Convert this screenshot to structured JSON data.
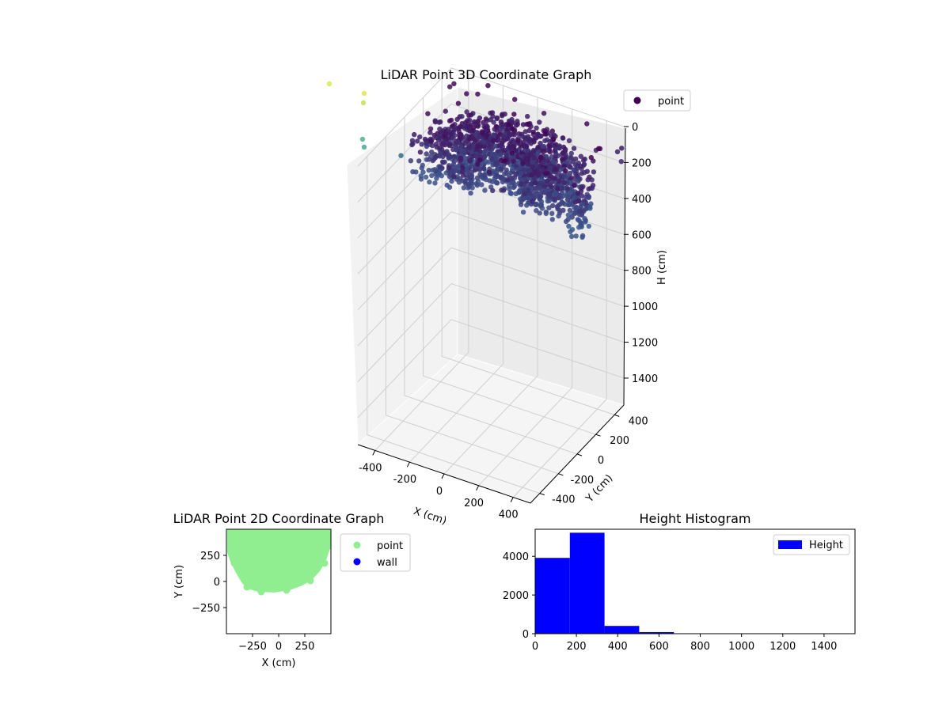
{
  "chart_data": [
    {
      "type": "scatter",
      "projection": "3d",
      "title": "LiDAR Point 3D Coordinate Graph",
      "xlabel": "X (cm)",
      "ylabel": "Y (cm)",
      "zlabel": "H (cm)",
      "xlim": [
        -500,
        500
      ],
      "ylim": [
        -500,
        500
      ],
      "zlim": [
        1550,
        0
      ],
      "x_ticks": [
        -400,
        -200,
        0,
        200,
        400
      ],
      "y_ticks": [
        -400,
        -200,
        0,
        200,
        400
      ],
      "z_ticks": [
        0,
        200,
        400,
        600,
        800,
        1000,
        1200,
        1400
      ],
      "colormap": "viridis",
      "legend": {
        "entries": [
          "point"
        ],
        "placement": "top-right"
      },
      "grid": true
    },
    {
      "type": "scatter",
      "title": "LiDAR Point 2D Coordinate Graph",
      "xlabel": "X (cm)",
      "ylabel": "Y (cm)",
      "xlim": [
        -500,
        500
      ],
      "ylim": [
        -500,
        500
      ],
      "x_ticks": [
        -250,
        0,
        250
      ],
      "y_ticks": [
        -250,
        0,
        250
      ],
      "series": [
        {
          "name": "point",
          "color": "#90ee90"
        },
        {
          "name": "wall",
          "color": "#0000ff"
        }
      ],
      "legend": {
        "entries": [
          "point",
          "wall"
        ],
        "placement": "outside-right"
      },
      "grid": false
    },
    {
      "type": "bar",
      "title": "Height Histogram",
      "xlabel": "",
      "ylabel": "",
      "xlim": [
        0,
        1550
      ],
      "ylim": [
        0,
        5400
      ],
      "x_ticks": [
        0,
        200,
        400,
        600,
        800,
        1000,
        1200,
        1400
      ],
      "y_ticks": [
        0,
        2000,
        4000
      ],
      "bin_edges": [
        0,
        168,
        336,
        504,
        672,
        840,
        1008,
        1176,
        1344,
        1512
      ],
      "series": [
        {
          "name": "Height",
          "color": "#0000ff",
          "values": [
            3920,
            5220,
            400,
            80,
            10,
            5,
            3,
            2,
            2
          ]
        }
      ],
      "legend": {
        "entries": [
          "Height"
        ],
        "placement": "upper-right"
      },
      "grid": false
    }
  ]
}
